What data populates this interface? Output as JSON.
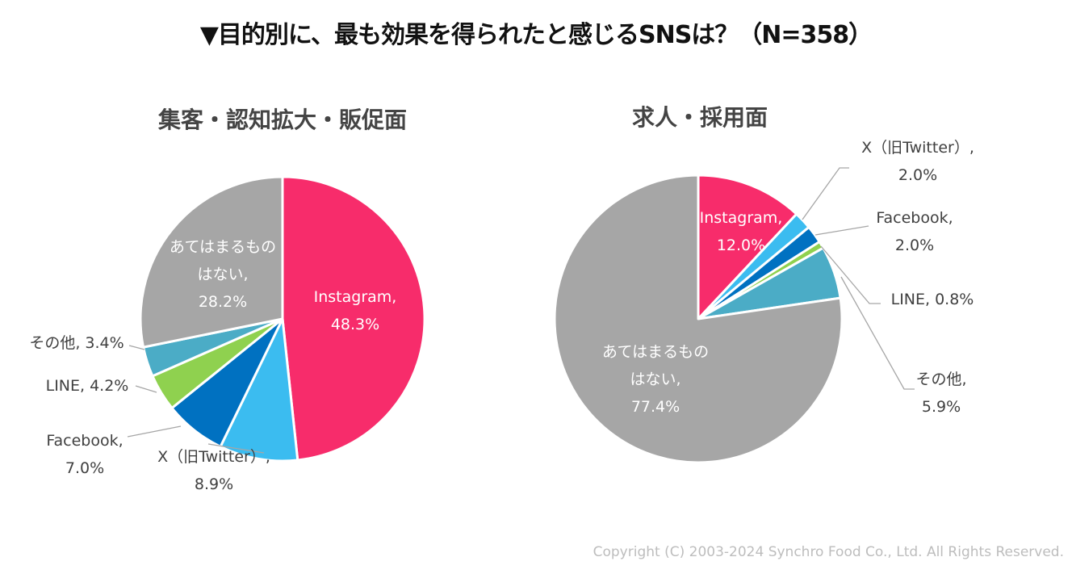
{
  "title": "▼目的別に、最も効果を得られたと感じるSNSは？（N=358）",
  "copyright": "Copyright (C) 2003-2024  Synchro Food Co., Ltd. All Rights Reserved.",
  "chart_data": [
    {
      "type": "pie",
      "title": "集客・認知拡大・販促面",
      "slices": [
        {
          "name": "Instagram",
          "value": 48.3,
          "label_lines": [
            "Instagram,",
            "48.3%"
          ],
          "color": "#f72c6b"
        },
        {
          "name": "X（旧Twitter）",
          "value": 8.9,
          "label_lines": [
            "X（旧Twitter）,",
            "8.9%"
          ],
          "color": "#3bbcf0"
        },
        {
          "name": "Facebook",
          "value": 7.0,
          "label_lines": [
            "Facebook,",
            "7.0%"
          ],
          "color": "#0071c1"
        },
        {
          "name": "LINE",
          "value": 4.2,
          "label_lines": [
            "LINE, 4.2%"
          ],
          "color": "#8fd14f"
        },
        {
          "name": "その他",
          "value": 3.4,
          "label_lines": [
            "その他, 3.4%"
          ],
          "color": "#4bacc6"
        },
        {
          "name": "あてはまるものはない",
          "value": 28.2,
          "label_lines": [
            "あてはまるもの",
            "はない,",
            "28.2%"
          ],
          "color": "#a6a6a6"
        }
      ]
    },
    {
      "type": "pie",
      "title": "求人・採用面",
      "slices": [
        {
          "name": "Instagram",
          "value": 12.0,
          "label_lines": [
            "Instagram,",
            "12.0%"
          ],
          "color": "#f72c6b"
        },
        {
          "name": "X（旧Twitter）",
          "value": 2.0,
          "label_lines": [
            "X（旧Twitter）,",
            "2.0%"
          ],
          "color": "#3bbcf0"
        },
        {
          "name": "Facebook",
          "value": 2.0,
          "label_lines": [
            "Facebook,",
            "2.0%"
          ],
          "color": "#0071c1"
        },
        {
          "name": "LINE",
          "value": 0.8,
          "label_lines": [
            "LINE, 0.8%"
          ],
          "color": "#8fd14f"
        },
        {
          "name": "その他",
          "value": 5.9,
          "label_lines": [
            "その他,",
            "5.9%"
          ],
          "color": "#4bacc6"
        },
        {
          "name": "あてはまるものはない",
          "value": 77.4,
          "label_lines": [
            "あてはまるもの",
            "はない,",
            "77.4%"
          ],
          "color": "#a6a6a6"
        }
      ]
    }
  ]
}
